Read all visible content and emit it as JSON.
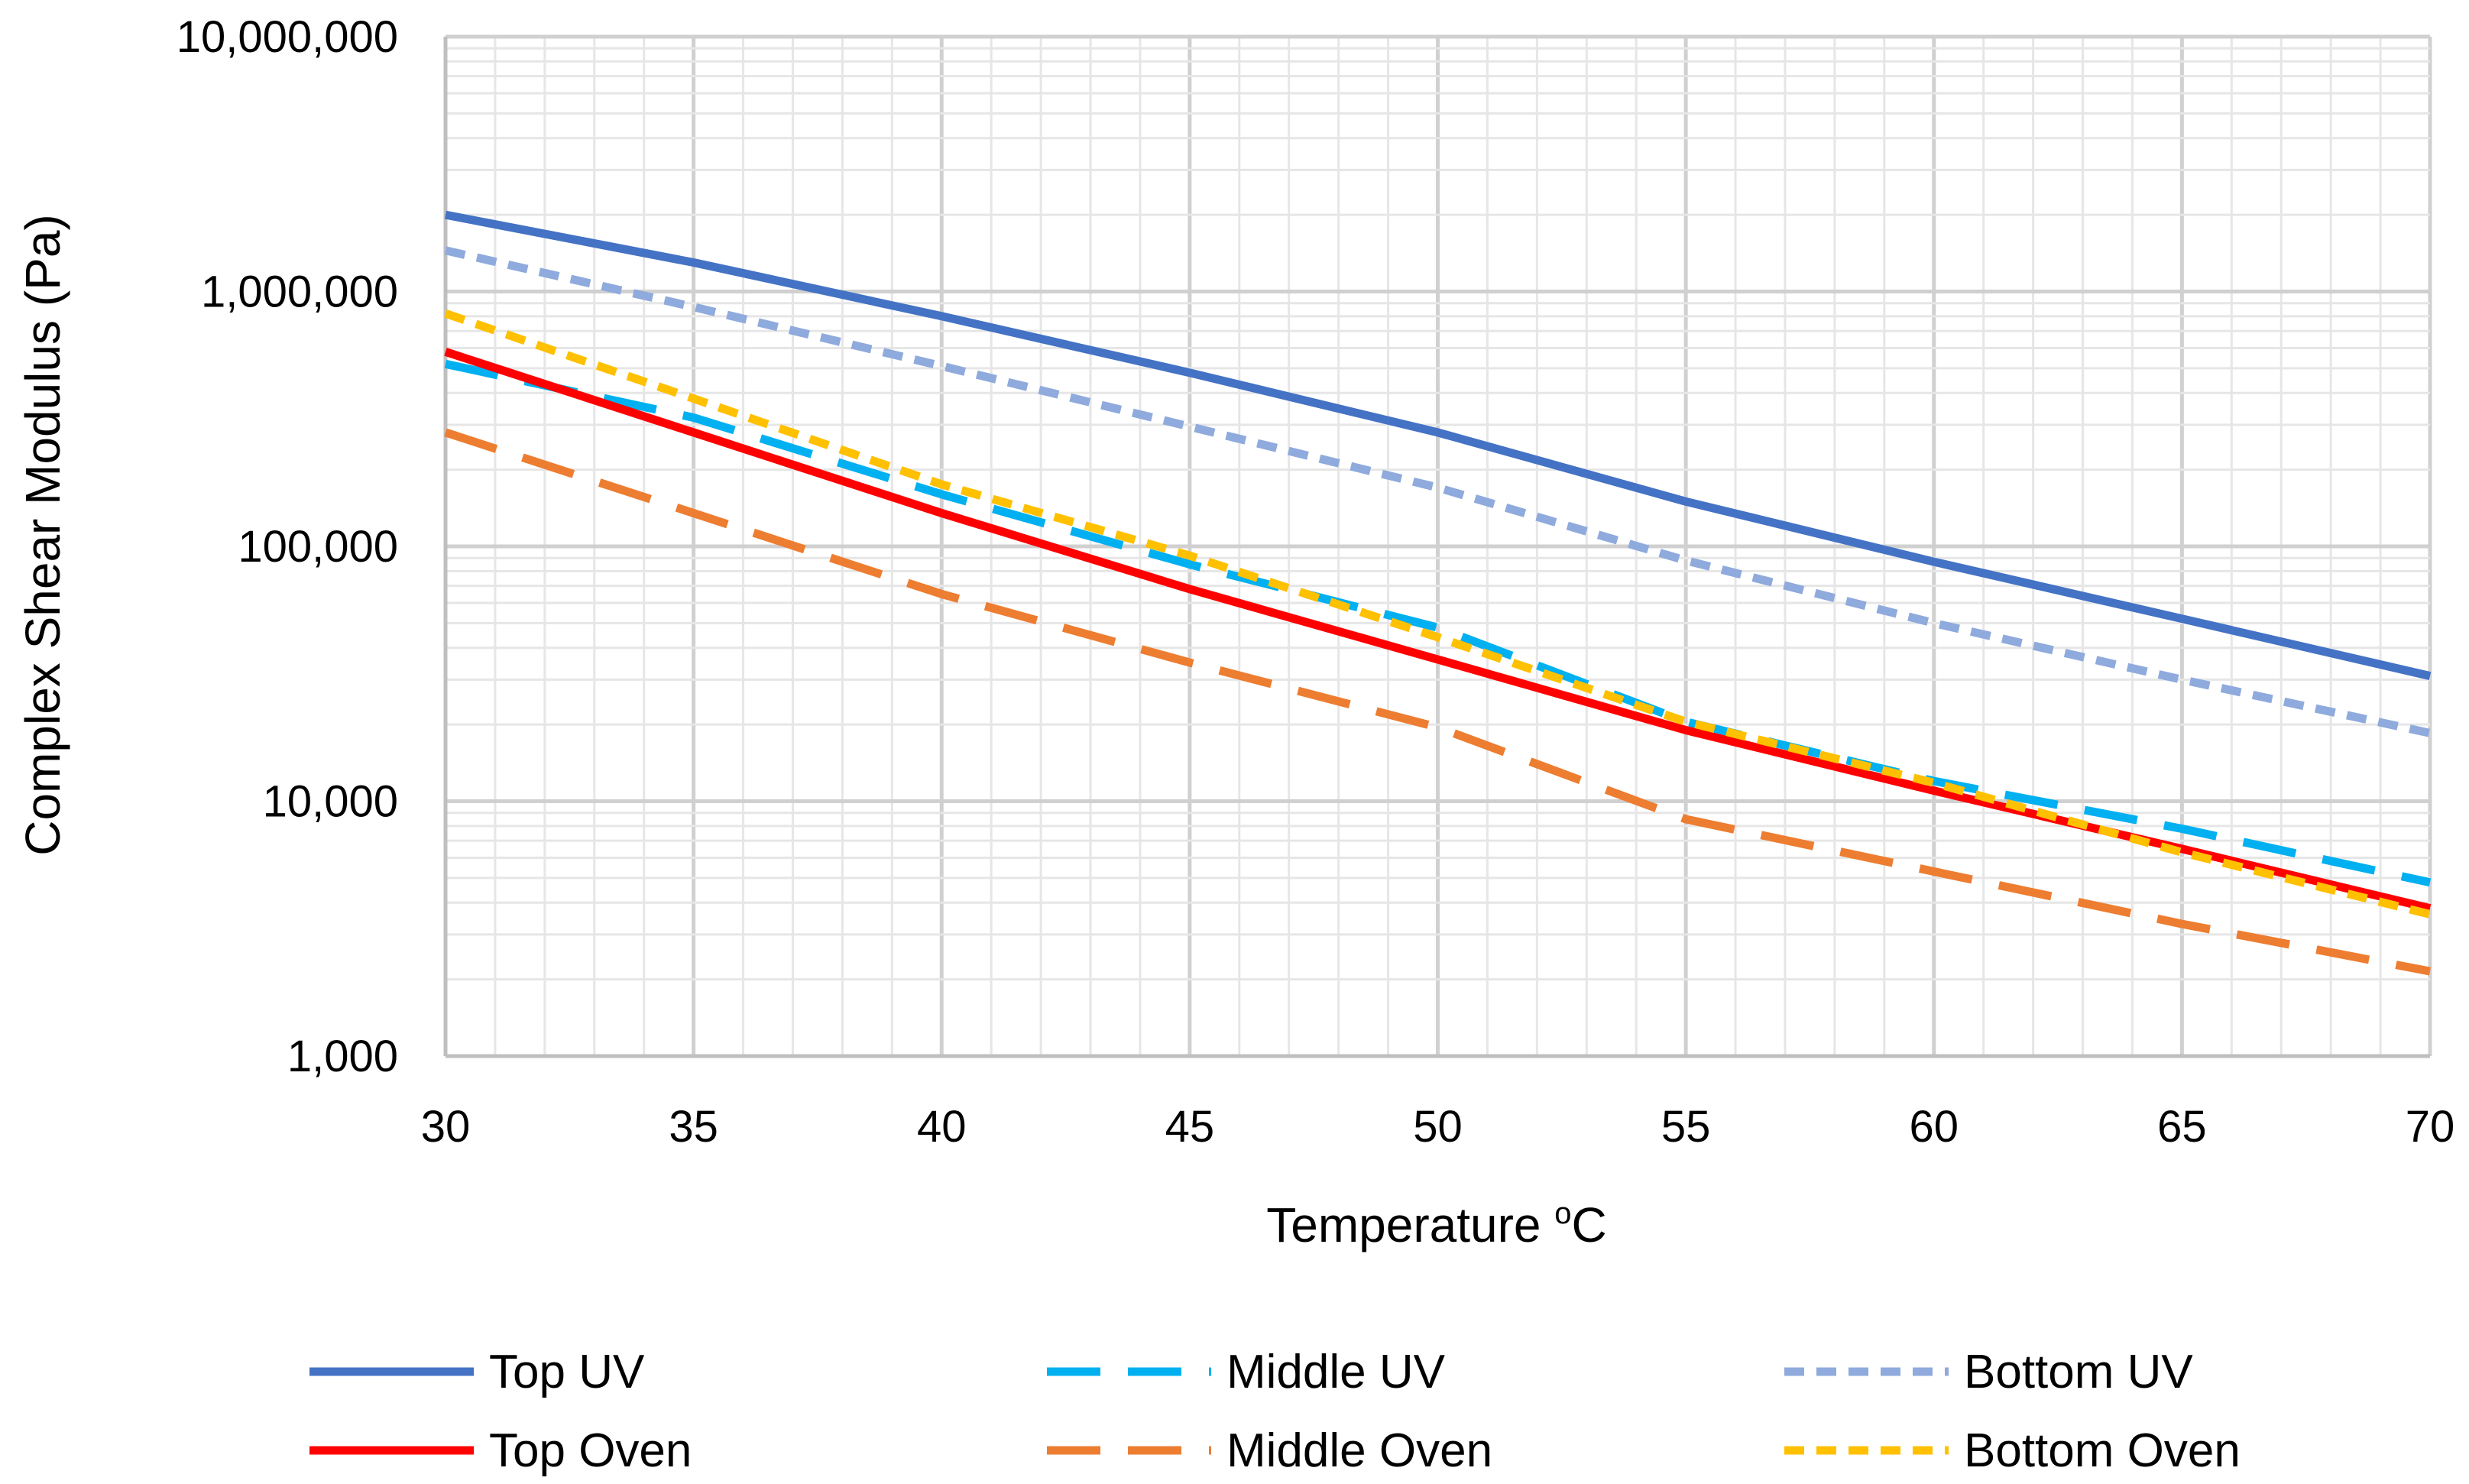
{
  "chart_data": {
    "type": "line",
    "title": "",
    "xlabel_main": "Temperature ",
    "xlabel_sup": "o",
    "xlabel_unit": "C",
    "ylabel": "Complex Shear Modulus (Pa)",
    "yscale": "log",
    "xlim": [
      30,
      70
    ],
    "ylim": [
      1000,
      10000000
    ],
    "x_ticks": [
      "30",
      "35",
      "40",
      "45",
      "50",
      "55",
      "60",
      "65",
      "70"
    ],
    "y_ticks": [
      "1,000",
      "10,000",
      "100,000",
      "1,000,000",
      "10,000,000"
    ],
    "grid": true,
    "legend_position": "bottom",
    "x": [
      30,
      35,
      40,
      45,
      50,
      55,
      60,
      65,
      70
    ],
    "series": [
      {
        "name": "Top UV",
        "color": "#4472C4",
        "style": "solid",
        "values": [
          2000000,
          1300000,
          800000,
          480000,
          280000,
          150000,
          87000,
          52000,
          31000
        ]
      },
      {
        "name": "Middle UV",
        "color": "#00B0F0",
        "style": "long-dash",
        "values": [
          520000,
          320000,
          160000,
          85000,
          48000,
          20500,
          12000,
          7800,
          4800
        ]
      },
      {
        "name": "Bottom UV",
        "color": "#8FAADC",
        "style": "short-dash",
        "values": [
          1450000,
          870000,
          510000,
          295000,
          170000,
          88000,
          50000,
          30000,
          18500
        ]
      },
      {
        "name": "Top Oven",
        "color": "#FF0000",
        "style": "solid",
        "values": [
          580000,
          280000,
          135000,
          68000,
          36000,
          19000,
          11000,
          6500,
          3800
        ]
      },
      {
        "name": "Middle Oven",
        "color": "#ED7D31",
        "style": "long-dash",
        "values": [
          280000,
          135000,
          65000,
          35000,
          19500,
          8500,
          5300,
          3300,
          2150
        ]
      },
      {
        "name": "Bottom Oven",
        "color": "#FFC000",
        "style": "short-dash",
        "values": [
          820000,
          380000,
          175000,
          92000,
          44000,
          20500,
          11800,
          6300,
          3600
        ]
      }
    ]
  }
}
